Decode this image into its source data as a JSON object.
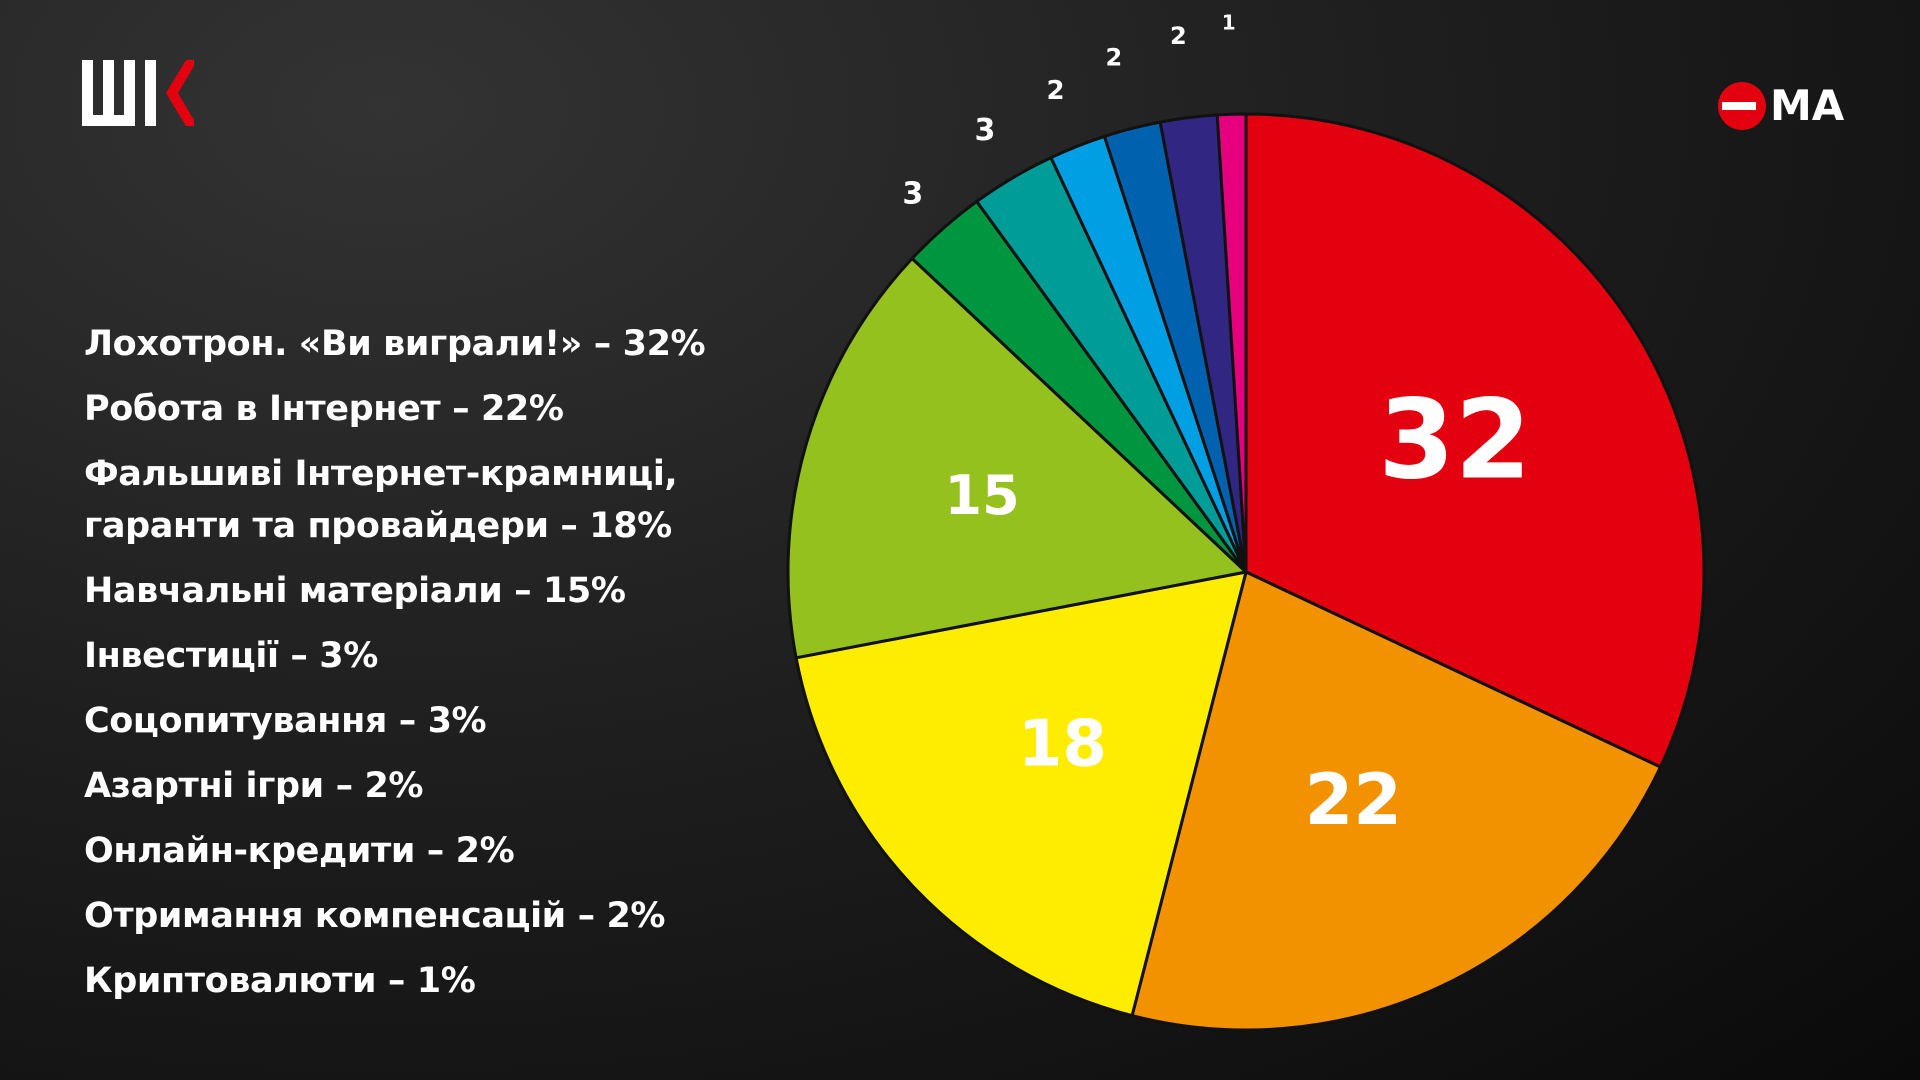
{
  "chart_data": {
    "type": "pie",
    "categories": [
      "Лохотрон. «Ви виграли!»",
      "Робота в Інтернет",
      "Фальшиві Інтернет-крамниці, гаранти та провайдери",
      "Навчальні матеріали",
      "Інвестиції",
      "Соцопитування",
      "Азартні ігри",
      "Онлайн-кредити",
      "Отримання компенсацій",
      "Криптовалюти"
    ],
    "values": [
      32,
      22,
      18,
      15,
      3,
      3,
      2,
      2,
      2,
      1
    ],
    "unit": "%",
    "colors": [
      "#e3000f",
      "#f39200",
      "#ffed00",
      "#95c11f",
      "#009640",
      "#009c97",
      "#009fe3",
      "#0062ae",
      "#312783",
      "#e6007e"
    ],
    "label_positions": [
      "inside",
      "inside",
      "inside",
      "inside",
      "outside",
      "outside",
      "outside",
      "outside",
      "outside",
      "outside"
    ],
    "start_angle": "top, clockwise"
  },
  "legend": {
    "items": [
      "Лохотрон. «Ви виграли!» – 32%",
      "Робота в Інтернет – 22%",
      "Фальшиві Інтернет-крамниці,\nгаранти та провайдери – 18%",
      "Навчальні матеріали – 15%",
      "Інвестиції – 3%",
      "Соцопитування – 3%",
      "Азартні ігри – 2%",
      "Онлайн-кредити – 2%",
      "Отримання компенсацій – 2%",
      "Криптовалюти – 1%"
    ]
  },
  "branding": {
    "left_logo_text": "ШК",
    "right_logo_text": "ЄМА",
    "accent_color": "#e3000f"
  }
}
